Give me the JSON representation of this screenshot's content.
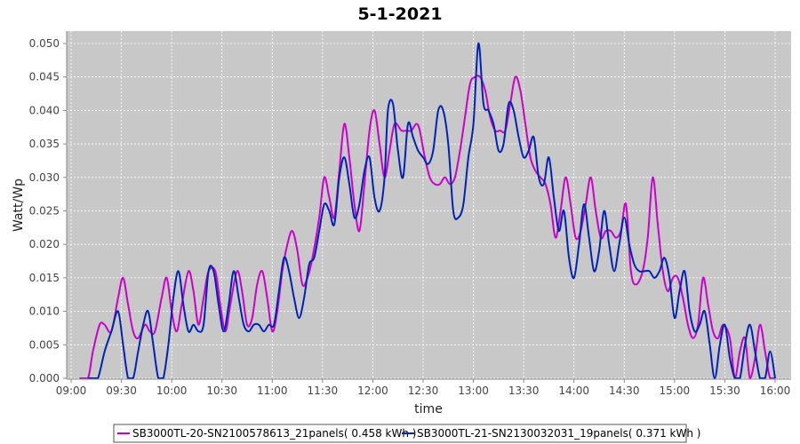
{
  "chart_data": {
    "type": "line",
    "title": "5-1-2021",
    "xlabel": "time",
    "ylabel": "Watt/Wp",
    "x_range": [
      "09:00",
      "16:00"
    ],
    "ylim": [
      0,
      0.052
    ],
    "x_ticks": [
      "09:00",
      "09:30",
      "10:00",
      "10:30",
      "11:00",
      "11:30",
      "12:00",
      "12:30",
      "13:00",
      "13:30",
      "14:00",
      "14:30",
      "15:00",
      "15:30",
      "16:00"
    ],
    "y_ticks": [
      "0.000",
      "0.005",
      "0.010",
      "0.015",
      "0.020",
      "0.025",
      "0.030",
      "0.035",
      "0.040",
      "0.045",
      "0.050"
    ],
    "grid": true,
    "legend_position": "bottom",
    "series": [
      {
        "name": "SB3000TL-20-SN2100578613_21panels( 0.458 kWh )",
        "color": "#cc00cc",
        "points": [
          [
            "09:05",
            0.0
          ],
          [
            "09:10",
            0.0
          ],
          [
            "09:13",
            0.004
          ],
          [
            "09:17",
            0.008
          ],
          [
            "09:20",
            0.008
          ],
          [
            "09:24",
            0.007
          ],
          [
            "09:28",
            0.012
          ],
          [
            "09:31",
            0.015
          ],
          [
            "09:34",
            0.011
          ],
          [
            "09:37",
            0.007
          ],
          [
            "09:40",
            0.006
          ],
          [
            "09:44",
            0.008
          ],
          [
            "09:47",
            0.007
          ],
          [
            "09:50",
            0.007
          ],
          [
            "09:54",
            0.012
          ],
          [
            "09:57",
            0.015
          ],
          [
            "10:00",
            0.01
          ],
          [
            "10:03",
            0.007
          ],
          [
            "10:06",
            0.011
          ],
          [
            "10:10",
            0.016
          ],
          [
            "10:13",
            0.013
          ],
          [
            "10:16",
            0.008
          ],
          [
            "10:19",
            0.012
          ],
          [
            "10:22",
            0.016
          ],
          [
            "10:26",
            0.016
          ],
          [
            "10:29",
            0.011
          ],
          [
            "10:32",
            0.007
          ],
          [
            "10:35",
            0.011
          ],
          [
            "10:39",
            0.016
          ],
          [
            "10:42",
            0.013
          ],
          [
            "10:45",
            0.008
          ],
          [
            "10:48",
            0.009
          ],
          [
            "10:51",
            0.014
          ],
          [
            "10:54",
            0.016
          ],
          [
            "10:57",
            0.012
          ],
          [
            "11:00",
            0.007
          ],
          [
            "11:03",
            0.01
          ],
          [
            "11:06",
            0.016
          ],
          [
            "11:09",
            0.02
          ],
          [
            "11:12",
            0.022
          ],
          [
            "11:15",
            0.019
          ],
          [
            "11:18",
            0.014
          ],
          [
            "11:21",
            0.015
          ],
          [
            "11:24",
            0.018
          ],
          [
            "11:28",
            0.024
          ],
          [
            "11:31",
            0.03
          ],
          [
            "11:34",
            0.027
          ],
          [
            "11:37",
            0.024
          ],
          [
            "11:40",
            0.031
          ],
          [
            "11:43",
            0.038
          ],
          [
            "11:46",
            0.033
          ],
          [
            "11:49",
            0.026
          ],
          [
            "11:52",
            0.022
          ],
          [
            "11:55",
            0.029
          ],
          [
            "11:58",
            0.037
          ],
          [
            "12:01",
            0.04
          ],
          [
            "12:04",
            0.035
          ],
          [
            "12:07",
            0.03
          ],
          [
            "12:10",
            0.034
          ],
          [
            "12:13",
            0.038
          ],
          [
            "12:17",
            0.037
          ],
          [
            "12:20",
            0.037
          ],
          [
            "12:23",
            0.037
          ],
          [
            "12:26",
            0.038
          ],
          [
            "12:28",
            0.037
          ],
          [
            "12:31",
            0.033
          ],
          [
            "12:34",
            0.03
          ],
          [
            "12:37",
            0.029
          ],
          [
            "12:40",
            0.029
          ],
          [
            "12:43",
            0.03
          ],
          [
            "12:46",
            0.029
          ],
          [
            "12:49",
            0.03
          ],
          [
            "12:52",
            0.034
          ],
          [
            "12:55",
            0.039
          ],
          [
            "12:58",
            0.044
          ],
          [
            "13:01",
            0.045
          ],
          [
            "13:04",
            0.045
          ],
          [
            "13:07",
            0.043
          ],
          [
            "13:10",
            0.039
          ],
          [
            "13:13",
            0.037
          ],
          [
            "13:16",
            0.037
          ],
          [
            "13:19",
            0.037
          ],
          [
            "13:22",
            0.041
          ],
          [
            "13:25",
            0.045
          ],
          [
            "13:28",
            0.043
          ],
          [
            "13:31",
            0.038
          ],
          [
            "13:34",
            0.033
          ],
          [
            "13:37",
            0.031
          ],
          [
            "13:40",
            0.03
          ],
          [
            "13:43",
            0.029
          ],
          [
            "13:46",
            0.026
          ],
          [
            "13:49",
            0.021
          ],
          [
            "13:52",
            0.025
          ],
          [
            "13:55",
            0.03
          ],
          [
            "13:58",
            0.026
          ],
          [
            "14:01",
            0.021
          ],
          [
            "14:04",
            0.022
          ],
          [
            "14:07",
            0.026
          ],
          [
            "14:10",
            0.03
          ],
          [
            "14:13",
            0.025
          ],
          [
            "14:16",
            0.021
          ],
          [
            "14:19",
            0.022
          ],
          [
            "14:22",
            0.022
          ],
          [
            "14:25",
            0.021
          ],
          [
            "14:28",
            0.022
          ],
          [
            "14:31",
            0.026
          ],
          [
            "14:34",
            0.016
          ],
          [
            "14:37",
            0.014
          ],
          [
            "14:41",
            0.016
          ],
          [
            "14:44",
            0.021
          ],
          [
            "14:47",
            0.03
          ],
          [
            "14:50",
            0.023
          ],
          [
            "14:53",
            0.016
          ],
          [
            "14:56",
            0.013
          ],
          [
            "14:59",
            0.015
          ],
          [
            "15:02",
            0.015
          ],
          [
            "15:05",
            0.012
          ],
          [
            "15:08",
            0.008
          ],
          [
            "15:11",
            0.006
          ],
          [
            "15:14",
            0.008
          ],
          [
            "15:17",
            0.015
          ],
          [
            "15:20",
            0.011
          ],
          [
            "15:23",
            0.007
          ],
          [
            "15:26",
            0.006
          ],
          [
            "15:29",
            0.008
          ],
          [
            "15:33",
            0.006
          ],
          [
            "15:36",
            0.0
          ],
          [
            "15:39",
            0.004
          ],
          [
            "15:42",
            0.006
          ],
          [
            "15:45",
            0.0
          ],
          [
            "15:48",
            0.003
          ],
          [
            "15:51",
            0.008
          ],
          [
            "15:54",
            0.004
          ],
          [
            "15:57",
            0.0
          ],
          [
            "16:00",
            0.0
          ]
        ]
      },
      {
        "name": "SB3000TL-21-SN2130032031_19panels( 0.371 kWh )",
        "color": "#0022bb",
        "points": [
          [
            "09:10",
            0.0
          ],
          [
            "09:13",
            0.0
          ],
          [
            "09:16",
            0.0
          ],
          [
            "09:20",
            0.004
          ],
          [
            "09:24",
            0.007
          ],
          [
            "09:28",
            0.01
          ],
          [
            "09:31",
            0.005
          ],
          [
            "09:34",
            0.0
          ],
          [
            "09:37",
            0.0
          ],
          [
            "09:40",
            0.004
          ],
          [
            "09:43",
            0.008
          ],
          [
            "09:46",
            0.01
          ],
          [
            "09:49",
            0.005
          ],
          [
            "09:52",
            0.0
          ],
          [
            "09:55",
            0.0
          ],
          [
            "09:58",
            0.005
          ],
          [
            "10:01",
            0.012
          ],
          [
            "10:04",
            0.016
          ],
          [
            "10:07",
            0.011
          ],
          [
            "10:10",
            0.007
          ],
          [
            "10:13",
            0.008
          ],
          [
            "10:16",
            0.007
          ],
          [
            "10:19",
            0.008
          ],
          [
            "10:22",
            0.016
          ],
          [
            "10:25",
            0.016
          ],
          [
            "10:28",
            0.011
          ],
          [
            "10:31",
            0.007
          ],
          [
            "10:34",
            0.011
          ],
          [
            "10:37",
            0.016
          ],
          [
            "10:40",
            0.012
          ],
          [
            "10:43",
            0.008
          ],
          [
            "10:46",
            0.007
          ],
          [
            "10:49",
            0.008
          ],
          [
            "10:52",
            0.008
          ],
          [
            "10:55",
            0.007
          ],
          [
            "10:58",
            0.008
          ],
          [
            "11:01",
            0.008
          ],
          [
            "11:04",
            0.013
          ],
          [
            "11:07",
            0.018
          ],
          [
            "11:10",
            0.016
          ],
          [
            "11:13",
            0.012
          ],
          [
            "11:16",
            0.009
          ],
          [
            "11:19",
            0.012
          ],
          [
            "11:22",
            0.017
          ],
          [
            "11:25",
            0.018
          ],
          [
            "11:28",
            0.022
          ],
          [
            "11:31",
            0.026
          ],
          [
            "11:34",
            0.025
          ],
          [
            "11:37",
            0.023
          ],
          [
            "11:40",
            0.03
          ],
          [
            "11:43",
            0.033
          ],
          [
            "11:46",
            0.029
          ],
          [
            "11:49",
            0.024
          ],
          [
            "11:52",
            0.026
          ],
          [
            "11:55",
            0.031
          ],
          [
            "11:58",
            0.033
          ],
          [
            "12:01",
            0.027
          ],
          [
            "12:04",
            0.025
          ],
          [
            "12:07",
            0.03
          ],
          [
            "12:09",
            0.04
          ],
          [
            "12:12",
            0.041
          ],
          [
            "12:15",
            0.034
          ],
          [
            "12:18",
            0.03
          ],
          [
            "12:21",
            0.038
          ],
          [
            "12:24",
            0.036
          ],
          [
            "12:27",
            0.034
          ],
          [
            "12:30",
            0.033
          ],
          [
            "12:33",
            0.032
          ],
          [
            "12:36",
            0.034
          ],
          [
            "12:39",
            0.04
          ],
          [
            "12:42",
            0.04
          ],
          [
            "12:45",
            0.035
          ],
          [
            "12:48",
            0.025
          ],
          [
            "12:51",
            0.024
          ],
          [
            "12:54",
            0.026
          ],
          [
            "12:57",
            0.033
          ],
          [
            "13:00",
            0.038
          ],
          [
            "13:03",
            0.05
          ],
          [
            "13:06",
            0.041
          ],
          [
            "13:09",
            0.04
          ],
          [
            "13:12",
            0.038
          ],
          [
            "13:15",
            0.034
          ],
          [
            "13:18",
            0.035
          ],
          [
            "13:21",
            0.041
          ],
          [
            "13:24",
            0.04
          ],
          [
            "13:27",
            0.036
          ],
          [
            "13:30",
            0.033
          ],
          [
            "13:33",
            0.034
          ],
          [
            "13:36",
            0.036
          ],
          [
            "13:39",
            0.03
          ],
          [
            "13:42",
            0.029
          ],
          [
            "13:45",
            0.033
          ],
          [
            "13:48",
            0.027
          ],
          [
            "13:51",
            0.022
          ],
          [
            "13:54",
            0.025
          ],
          [
            "13:57",
            0.018
          ],
          [
            "14:00",
            0.015
          ],
          [
            "14:03",
            0.02
          ],
          [
            "14:06",
            0.026
          ],
          [
            "14:09",
            0.021
          ],
          [
            "14:12",
            0.016
          ],
          [
            "14:15",
            0.019
          ],
          [
            "14:18",
            0.025
          ],
          [
            "14:21",
            0.02
          ],
          [
            "14:24",
            0.016
          ],
          [
            "14:27",
            0.02
          ],
          [
            "14:30",
            0.024
          ],
          [
            "14:33",
            0.02
          ],
          [
            "14:36",
            0.017
          ],
          [
            "14:39",
            0.016
          ],
          [
            "14:42",
            0.016
          ],
          [
            "14:45",
            0.016
          ],
          [
            "14:48",
            0.015
          ],
          [
            "14:51",
            0.016
          ],
          [
            "14:54",
            0.018
          ],
          [
            "14:57",
            0.015
          ],
          [
            "15:00",
            0.009
          ],
          [
            "15:03",
            0.013
          ],
          [
            "15:06",
            0.016
          ],
          [
            "15:09",
            0.01
          ],
          [
            "15:12",
            0.007
          ],
          [
            "15:15",
            0.008
          ],
          [
            "15:18",
            0.01
          ],
          [
            "15:21",
            0.005
          ],
          [
            "15:24",
            0.0
          ],
          [
            "15:27",
            0.005
          ],
          [
            "15:30",
            0.008
          ],
          [
            "15:33",
            0.003
          ],
          [
            "15:36",
            0.0
          ],
          [
            "15:39",
            0.0
          ],
          [
            "15:42",
            0.005
          ],
          [
            "15:45",
            0.008
          ],
          [
            "15:48",
            0.004
          ],
          [
            "15:51",
            0.0
          ],
          [
            "15:54",
            0.0
          ],
          [
            "15:57",
            0.004
          ],
          [
            "16:00",
            0.0
          ]
        ]
      }
    ]
  }
}
